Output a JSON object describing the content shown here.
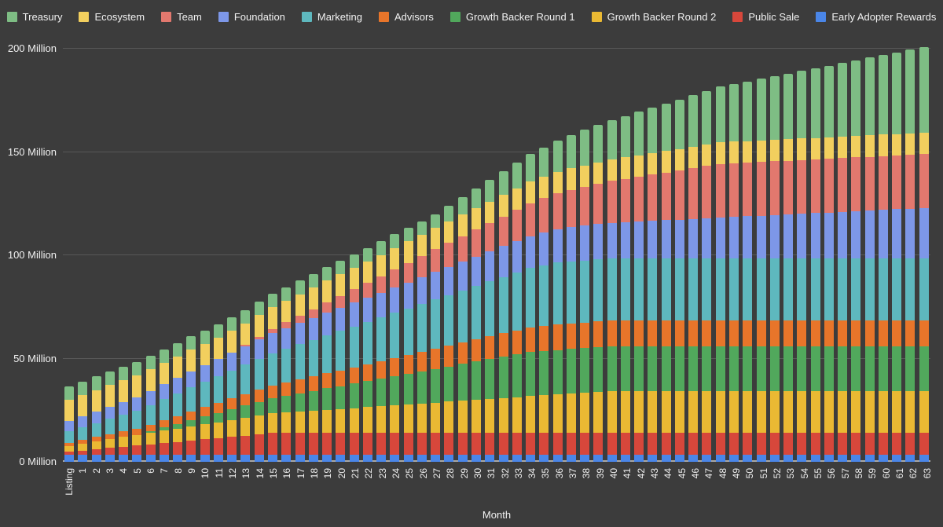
{
  "page": {
    "background": "#3C3C3C",
    "text_color": "#F1F1F1",
    "gridline_color": "#585858",
    "baseline_color": "#A8A8A8"
  },
  "legend": {
    "position": "top",
    "items": [
      {
        "id": "treasury",
        "label": "Treasury",
        "color": "#7EBD84"
      },
      {
        "id": "ecosystem",
        "label": "Ecosystem",
        "color": "#F2CF5E"
      },
      {
        "id": "team",
        "label": "Team",
        "color": "#E2786E"
      },
      {
        "id": "foundation",
        "label": "Foundation",
        "color": "#7D97E8"
      },
      {
        "id": "marketing",
        "label": "Marketing",
        "color": "#5EB8BE"
      },
      {
        "id": "advisors",
        "label": "Advisors",
        "color": "#E8752A"
      },
      {
        "id": "growth-backer-round-1",
        "label": "Growth Backer Round 1",
        "color": "#51A85C"
      },
      {
        "id": "growth-backer-round-2",
        "label": "Growth Backer Round 2",
        "color": "#EAB933"
      },
      {
        "id": "public-sale",
        "label": "Public Sale",
        "color": "#D7473B"
      },
      {
        "id": "early-adopter-rewards",
        "label": "Early Adopter Rewards",
        "color": "#4A86E8"
      }
    ]
  },
  "y_axis": {
    "ticks": [
      {
        "label": "0 Million",
        "value": 0
      },
      {
        "label": "50 Million",
        "value": 50
      },
      {
        "label": "100 Million",
        "value": 100
      },
      {
        "label": "150 Million",
        "value": 150
      },
      {
        "label": "200 Million",
        "value": 200
      }
    ]
  },
  "chart_data": {
    "type": "bar",
    "stacked": true,
    "title": "",
    "xlabel": "Month",
    "ylabel": "",
    "unit": "Million tokens",
    "ylim": [
      0,
      200
    ],
    "grid": true,
    "legend_position": "top",
    "stack_order": "bottom-to-top",
    "x": [
      "Listing",
      "1",
      "2",
      "3",
      "4",
      "5",
      "6",
      "7",
      "8",
      "9",
      "10",
      "11",
      "12",
      "13",
      "14",
      "15",
      "16",
      "17",
      "18",
      "19",
      "20",
      "21",
      "22",
      "23",
      "24",
      "25",
      "26",
      "27",
      "28",
      "29",
      "30",
      "31",
      "32",
      "33",
      "34",
      "35",
      "36",
      "37",
      "38",
      "39",
      "40",
      "41",
      "42",
      "43",
      "44",
      "45",
      "46",
      "47",
      "48",
      "49",
      "50",
      "51",
      "52",
      "53",
      "54",
      "55",
      "56",
      "57",
      "58",
      "59",
      "60",
      "61",
      "62",
      "63"
    ],
    "series": [
      {
        "id": "early-adopter-rewards",
        "name": "Early Adopter Rewards",
        "color": "#4A86E8",
        "values": [
          3.4,
          3.4,
          3.4,
          3.4,
          3.4,
          3.4,
          3.4,
          3.4,
          3.4,
          3.4,
          3.4,
          3.4,
          3.4,
          3.4,
          3.4,
          3.4,
          3.4,
          3.4,
          3.4,
          3.4,
          3.4,
          3.4,
          3.4,
          3.4,
          3.4,
          3.4,
          3.4,
          3.4,
          3.4,
          3.4,
          3.4,
          3.4,
          3.4,
          3.4,
          3.4,
          3.4,
          3.4,
          3.4,
          3.4,
          3.4,
          3.4,
          3.4,
          3.4,
          3.4,
          3.4,
          3.4,
          3.4,
          3.4,
          3.4,
          3.4,
          3.4,
          3.4,
          3.4,
          3.4,
          3.4,
          3.4,
          3.4,
          3.4,
          3.4,
          3.4,
          3.4,
          3.4,
          3.4,
          3.4
        ]
      },
      {
        "id": "public-sale",
        "name": "Public Sale",
        "color": "#D7473B",
        "values": [
          1.5,
          2.1,
          2.7,
          3.3,
          3.9,
          4.5,
          5.1,
          5.7,
          6.3,
          6.9,
          7.5,
          8.1,
          8.7,
          9.3,
          9.9,
          10.5,
          10.5,
          10.5,
          10.5,
          10.5,
          10.5,
          10.5,
          10.5,
          10.5,
          10.5,
          10.5,
          10.5,
          10.5,
          10.5,
          10.5,
          10.5,
          10.5,
          10.5,
          10.5,
          10.5,
          10.5,
          10.5,
          10.5,
          10.5,
          10.5,
          10.5,
          10.5,
          10.5,
          10.5,
          10.5,
          10.5,
          10.5,
          10.5,
          10.5,
          10.5,
          10.5,
          10.5,
          10.5,
          10.5,
          10.5,
          10.5,
          10.5,
          10.5,
          10.5,
          10.5,
          10.5,
          10.5,
          10.5,
          10.5
        ]
      },
      {
        "id": "growth-backer-round-2",
        "name": "Growth Backer Round 2",
        "color": "#EAB933",
        "values": [
          2.9,
          3.3,
          3.8,
          4.2,
          4.7,
          5.1,
          5.5,
          6.0,
          6.4,
          6.9,
          7.3,
          7.7,
          8.2,
          8.6,
          9.1,
          9.5,
          9.9,
          10.4,
          10.8,
          11.3,
          11.7,
          12.1,
          12.6,
          13.0,
          13.5,
          13.9,
          14.3,
          14.8,
          15.2,
          15.7,
          16.1,
          16.5,
          17.0,
          17.4,
          17.9,
          18.3,
          18.7,
          19.2,
          19.6,
          20.1,
          20.5,
          20.5,
          20.5,
          20.5,
          20.5,
          20.5,
          20.5,
          20.5,
          20.5,
          20.5,
          20.5,
          20.5,
          20.5,
          20.5,
          20.5,
          20.5,
          20.5,
          20.5,
          20.5,
          20.5,
          20.5,
          20.5,
          20.5,
          20.5
        ]
      },
      {
        "id": "growth-backer-round-1",
        "name": "Growth Backer Round 1",
        "color": "#51A85C",
        "values": [
          0,
          0,
          0,
          0,
          0,
          0,
          0.7,
          1.5,
          2.2,
          3.0,
          3.7,
          4.4,
          5.2,
          5.9,
          6.7,
          7.4,
          8.2,
          8.9,
          9.6,
          10.4,
          11.1,
          11.9,
          12.6,
          13.3,
          14.1,
          14.8,
          15.6,
          16.3,
          17.1,
          17.8,
          18.5,
          19.3,
          20.0,
          20.8,
          21.5,
          21.5,
          21.5,
          21.5,
          21.5,
          21.5,
          21.5,
          21.5,
          21.5,
          21.5,
          21.5,
          21.5,
          21.5,
          21.5,
          21.5,
          21.5,
          21.5,
          21.5,
          21.5,
          21.5,
          21.5,
          21.5,
          21.5,
          21.5,
          21.5,
          21.5,
          21.5,
          21.5,
          21.5,
          21.5
        ]
      },
      {
        "id": "advisors",
        "name": "Advisors",
        "color": "#E8752A",
        "values": [
          1.5,
          1.8,
          2.1,
          2.4,
          2.7,
          3.0,
          3.3,
          3.6,
          3.9,
          4.3,
          4.6,
          4.9,
          5.2,
          5.5,
          5.8,
          6.1,
          6.4,
          6.7,
          7.0,
          7.3,
          7.6,
          7.9,
          8.2,
          8.5,
          8.8,
          9.1,
          9.4,
          9.8,
          10.1,
          10.4,
          10.7,
          11.0,
          11.3,
          11.6,
          11.9,
          12.2,
          12.5,
          12.5,
          12.5,
          12.5,
          12.5,
          12.5,
          12.5,
          12.5,
          12.5,
          12.5,
          12.5,
          12.5,
          12.5,
          12.5,
          12.5,
          12.5,
          12.5,
          12.5,
          12.5,
          12.5,
          12.5,
          12.5,
          12.5,
          12.5,
          12.5,
          12.5,
          12.5,
          12.5
        ]
      },
      {
        "id": "marketing",
        "name": "Marketing",
        "color": "#5EB8BE",
        "values": [
          5.4,
          6.1,
          6.8,
          7.5,
          8.1,
          8.8,
          9.5,
          10.2,
          10.9,
          11.6,
          12.2,
          12.9,
          13.6,
          14.3,
          15.0,
          15.7,
          16.3,
          17.0,
          17.7,
          18.4,
          19.1,
          19.8,
          20.4,
          21.1,
          21.8,
          22.5,
          23.2,
          23.9,
          24.5,
          25.2,
          25.9,
          26.6,
          27.3,
          28.0,
          28.6,
          29.3,
          30.0,
          30.0,
          30.0,
          30.0,
          30.0,
          30.0,
          30.0,
          30.0,
          30.0,
          30.0,
          30.0,
          30.0,
          30.0,
          30.0,
          30.0,
          30.0,
          30.0,
          30.0,
          30.0,
          30.0,
          30.0,
          30.0,
          30.0,
          30.0,
          30.0,
          30.0,
          30.0,
          30.0
        ]
      },
      {
        "id": "foundation",
        "name": "Foundation",
        "color": "#7D97E8",
        "values": [
          5.0,
          5.3,
          5.6,
          5.9,
          6.2,
          6.5,
          6.9,
          7.2,
          7.5,
          7.8,
          8.1,
          8.4,
          8.7,
          9.0,
          9.3,
          9.6,
          10.0,
          10.3,
          10.6,
          10.9,
          11.2,
          11.5,
          11.8,
          12.1,
          12.4,
          12.7,
          13.0,
          13.4,
          13.7,
          14.0,
          14.3,
          14.6,
          14.9,
          15.2,
          15.5,
          15.8,
          16.1,
          16.5,
          16.8,
          17.1,
          17.4,
          17.7,
          18.0,
          18.3,
          18.6,
          18.9,
          19.2,
          19.5,
          19.9,
          20.2,
          20.5,
          20.8,
          21.1,
          21.4,
          21.7,
          22.0,
          22.3,
          22.6,
          23.0,
          23.3,
          23.6,
          23.9,
          24.2,
          24.5
        ]
      },
      {
        "id": "team",
        "name": "Team",
        "color": "#E2786E",
        "values": [
          0,
          0,
          0,
          0,
          0,
          0,
          0,
          0,
          0,
          0,
          0,
          0,
          0,
          0.7,
          1.4,
          2.2,
          2.9,
          3.6,
          4.3,
          5.1,
          5.8,
          6.5,
          7.2,
          7.9,
          8.7,
          9.4,
          10.1,
          10.8,
          11.6,
          12.3,
          13.0,
          13.7,
          14.4,
          15.2,
          15.9,
          16.6,
          17.3,
          18.1,
          18.8,
          19.5,
          20.2,
          20.9,
          21.7,
          22.4,
          23.1,
          23.8,
          24.6,
          25.3,
          26.0,
          26.0,
          26.0,
          26.0,
          26.0,
          26.0,
          26.0,
          26.0,
          26.0,
          26.0,
          26.0,
          26.0,
          26.0,
          26.0,
          26.0,
          26.0
        ]
      },
      {
        "id": "ecosystem",
        "name": "Ecosystem",
        "color": "#F2CF5E",
        "values": [
          10.4,
          10.4,
          10.4,
          10.4,
          10.4,
          10.4,
          10.4,
          10.4,
          10.4,
          10.4,
          10.4,
          10.4,
          10.4,
          10.4,
          10.4,
          10.4,
          10.4,
          10.4,
          10.4,
          10.4,
          10.4,
          10.4,
          10.4,
          10.4,
          10.4,
          10.4,
          10.4,
          10.4,
          10.4,
          10.4,
          10.4,
          10.4,
          10.4,
          10.4,
          10.4,
          10.4,
          10.4,
          10.4,
          10.4,
          10.4,
          10.4,
          10.4,
          10.4,
          10.4,
          10.4,
          10.4,
          10.4,
          10.4,
          10.4,
          10.4,
          10.4,
          10.4,
          10.4,
          10.4,
          10.4,
          10.4,
          10.4,
          10.4,
          10.4,
          10.4,
          10.4,
          10.4,
          10.4,
          10.4
        ]
      },
      {
        "id": "treasury",
        "name": "Treasury",
        "color": "#7EBD84",
        "values": [
          6.5,
          6.5,
          6.5,
          6.5,
          6.5,
          6.5,
          6.5,
          6.5,
          6.5,
          6.5,
          6.5,
          6.5,
          6.5,
          6.5,
          6.5,
          6.5,
          6.5,
          6.5,
          6.5,
          6.5,
          6.5,
          6.5,
          6.5,
          6.5,
          6.5,
          6.5,
          6.5,
          6.5,
          7.5,
          8.4,
          9.4,
          10.4,
          11.4,
          12.3,
          13.3,
          14.3,
          15.3,
          16.2,
          17.2,
          18.2,
          19.1,
          20.1,
          21.1,
          22.1,
          23.0,
          24.0,
          25.0,
          25.9,
          26.9,
          27.9,
          28.9,
          29.8,
          30.8,
          31.8,
          32.8,
          33.7,
          34.7,
          35.7,
          36.6,
          37.6,
          38.6,
          39.6,
          40.5,
          41.5
        ]
      }
    ]
  }
}
